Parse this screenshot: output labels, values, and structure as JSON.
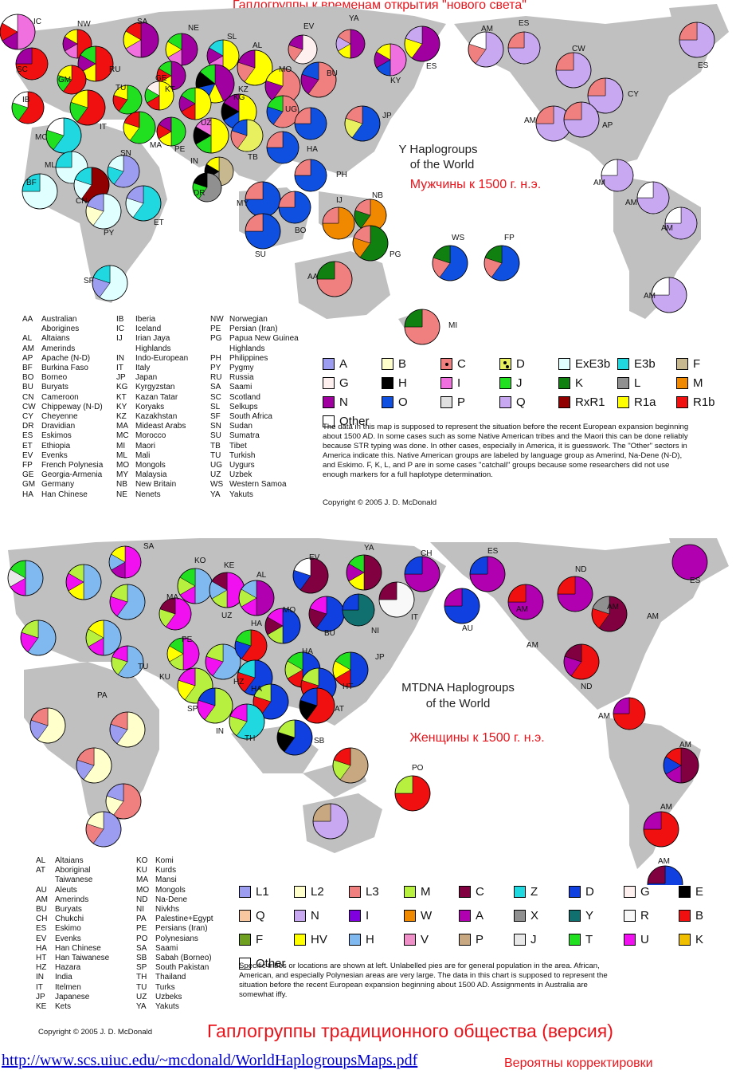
{
  "top": {
    "heading": "Гаплогруппы к временам открытия \"нового света\"",
    "map_title_line1": "Y Haplogroups",
    "map_title_line2": "of the World",
    "subtitle_ru": "Мужчины к 1500 г. н.э.",
    "labels": [
      "IC",
      "NW",
      "SA",
      "NE",
      "YA",
      "EV",
      "ES",
      "ES",
      "AM",
      "SC",
      "RU",
      "SL",
      "AL",
      "GM",
      "KT",
      "KY",
      "ES",
      "CW",
      "IB",
      "TU",
      "GE",
      "MO",
      "BU",
      "AM",
      "MC",
      "IT",
      "KG",
      "KZ",
      "UG",
      "JP",
      "CY",
      "AP",
      "ML",
      "SN",
      "UZ",
      "TB",
      "HA",
      "BF",
      "AM",
      "CN",
      "PE",
      "MA",
      "IN",
      "DR",
      "PH",
      "AM",
      "PY",
      "ET",
      "MY",
      "IJ",
      "NB",
      "AM",
      "SU",
      "BO",
      "PG",
      "WS",
      "FP",
      "SF",
      "AA",
      "MI",
      "AM"
    ],
    "abbrev": [
      [
        "AA",
        "Australian"
      ],
      [
        "",
        "Aborigines"
      ],
      [
        "AL",
        "Altaians"
      ],
      [
        "AM",
        "Amerinds"
      ],
      [
        "AP",
        "Apache (N-D)"
      ],
      [
        "BF",
        "Burkina Faso"
      ],
      [
        "BO",
        "Borneo"
      ],
      [
        "BU",
        "Buryats"
      ],
      [
        "CN",
        "Cameroon"
      ],
      [
        "CW",
        "Chippeway (N-D)"
      ],
      [
        "CY",
        "Cheyenne"
      ],
      [
        "DR",
        "Dravidian"
      ],
      [
        "ES",
        "Eskimos"
      ],
      [
        "ET",
        "Ethiopia"
      ],
      [
        "EV",
        "Evenks"
      ],
      [
        "FP",
        "French Polynesia"
      ],
      [
        "GE",
        "Georgia-Armenia"
      ],
      [
        "GM",
        "Germany"
      ],
      [
        "HA",
        "Han Chinese"
      ],
      [
        "IB",
        "Iberia"
      ],
      [
        "IC",
        "Iceland"
      ],
      [
        "IJ",
        "Irian Jaya"
      ],
      [
        "",
        "Highlands"
      ],
      [
        "IN",
        "Indo-European"
      ],
      [
        "IT",
        "Italy"
      ],
      [
        "JP",
        "Japan"
      ],
      [
        "KG",
        "Kyrgyzstan"
      ],
      [
        "KT",
        "Kazan Tatar"
      ],
      [
        "KY",
        "Koryaks"
      ],
      [
        "KZ",
        "Kazakhstan"
      ],
      [
        "MA",
        "Mideast Arabs"
      ],
      [
        "MC",
        "Morocco"
      ],
      [
        "MI",
        "Maori"
      ],
      [
        "ML",
        "Mali"
      ],
      [
        "MO",
        "Mongols"
      ],
      [
        "MY",
        "Malaysia"
      ],
      [
        "NB",
        "New Britain"
      ],
      [
        "NE",
        "Nenets"
      ],
      [
        "NW",
        "Norwegian"
      ],
      [
        "PE",
        "Persian (Iran)"
      ],
      [
        "PG",
        "Papua New Guinea"
      ],
      [
        "",
        "Highlands"
      ],
      [
        "PH",
        "Philippines"
      ],
      [
        "PY",
        "Pygmy"
      ],
      [
        "RU",
        "Russia"
      ],
      [
        "SA",
        "Saami"
      ],
      [
        "SC",
        "Scotland"
      ],
      [
        "SL",
        "Selkups"
      ],
      [
        "SF",
        "South Africa"
      ],
      [
        "SN",
        "Sudan"
      ],
      [
        "SU",
        "Sumatra"
      ],
      [
        "TB",
        "Tibet"
      ],
      [
        "TU",
        "Turkish"
      ],
      [
        "UG",
        "Uygurs"
      ],
      [
        "UZ",
        "Uzbek"
      ],
      [
        "WS",
        "Western Samoa"
      ],
      [
        "YA",
        "Yakuts"
      ]
    ],
    "key": [
      {
        "label": "A",
        "color": "#9c9cf0"
      },
      {
        "label": "B",
        "color": "#ffffcc"
      },
      {
        "label": "C",
        "color": "#f08080",
        "dot": "one"
      },
      {
        "label": "D",
        "color": "#e8f060",
        "dot": "two"
      },
      {
        "label": "ExE3b",
        "color": "#e0ffff"
      },
      {
        "label": "E3b",
        "color": "#20d8e0"
      },
      {
        "label": "F",
        "color": "#c8b890"
      },
      {
        "label": "G",
        "color": "#fff0f0"
      },
      {
        "label": "H",
        "color": "#000000"
      },
      {
        "label": "I",
        "color": "#f070e0"
      },
      {
        "label": "J",
        "color": "#20e020"
      },
      {
        "label": "K",
        "color": "#108010"
      },
      {
        "label": "L",
        "color": "#909090"
      },
      {
        "label": "M",
        "color": "#f08800"
      },
      {
        "label": "N",
        "color": "#a000a0"
      },
      {
        "label": "O",
        "color": "#1050e0"
      },
      {
        "label": "P",
        "color": "#e0e0e0"
      },
      {
        "label": "Q",
        "color": "#c8a8f0"
      },
      {
        "label": "RxR1",
        "color": "#900000"
      },
      {
        "label": "R1a",
        "color": "#ffff00"
      },
      {
        "label": "R1b",
        "color": "#f01010"
      },
      {
        "label": "Other",
        "color": "#ffffff"
      }
    ],
    "note": "The data in this map is supposed to represent the situation before the recent European expansion beginning about 1500 AD. In some cases such as some Native American tribes and the Maori this can be done reliably because STR typing was done. In other cases, especially in America, it is guesswork. The \"Other\" sectors in America indicate this. Native American groups are labeled by language group as Amerind, Na-Dene (N-D), and Eskimo.  F, K, L, and P are in some cases \"catchall\" groups because some researchers did not use enough markers for a full haplotype determination.",
    "copyright": "Copyright © 2005 J. D. McDonald"
  },
  "bottom": {
    "map_title_line1": "MTDNA Haplogroups",
    "map_title_line2": "of the World",
    "subtitle_ru": "Женщины к 1500 г. н.э.",
    "labels": [
      "SA",
      "EV",
      "YA",
      "CH",
      "ES",
      "ES",
      "KO",
      "KE",
      "AL",
      "ND",
      "MA",
      "MO",
      "AU",
      "AM",
      "AM",
      "UZ",
      "BU",
      "IT",
      "NI",
      "AM",
      "HA",
      "AM",
      "PE",
      "JP",
      "TU",
      "HA",
      "KU",
      "HT",
      "ND",
      "PA",
      "HZ",
      "AT",
      "SP",
      "HA",
      "AM",
      "IN",
      "TH",
      "SB",
      "PO",
      "AM",
      "AM",
      "AM"
    ],
    "abbrev": [
      [
        "AL",
        "Altaians"
      ],
      [
        "AT",
        "Aboriginal"
      ],
      [
        "",
        "Taiwanese"
      ],
      [
        "AU",
        "Aleuts"
      ],
      [
        "AM",
        "Amerinds"
      ],
      [
        "BU",
        "Buryats"
      ],
      [
        "CH",
        "Chukchi"
      ],
      [
        "ES",
        "Eskimo"
      ],
      [
        "EV",
        "Evenks"
      ],
      [
        "HA",
        "Han Chinese"
      ],
      [
        "HT",
        "Han Taiwanese"
      ],
      [
        "HZ",
        "Hazara"
      ],
      [
        "IN",
        "India"
      ],
      [
        "IT",
        "Itelmen"
      ],
      [
        "JP",
        "Japanese"
      ],
      [
        "KE",
        "Kets"
      ],
      [
        "KO",
        "Komi"
      ],
      [
        "KU",
        "Kurds"
      ],
      [
        "MA",
        "Mansi"
      ],
      [
        "MO",
        "Mongols"
      ],
      [
        "ND",
        "Na-Dene"
      ],
      [
        "NI",
        "Nivkhs"
      ],
      [
        "PA",
        "Palestine+Egypt"
      ],
      [
        "PE",
        "Persians (Iran)"
      ],
      [
        "PO",
        "Polynesians"
      ],
      [
        "SA",
        "Saami"
      ],
      [
        "SB",
        "Sabah (Borneo)"
      ],
      [
        "SP",
        "South Pakistan"
      ],
      [
        "TH",
        "Thailand"
      ],
      [
        "TU",
        "Turks"
      ],
      [
        "UZ",
        "Uzbeks"
      ],
      [
        "YA",
        "Yakuts"
      ]
    ],
    "key": [
      {
        "label": "L1",
        "color": "#9c9cf0"
      },
      {
        "label": "L2",
        "color": "#ffffcc"
      },
      {
        "label": "L3",
        "color": "#f08080"
      },
      {
        "label": "M",
        "color": "#b8f040"
      },
      {
        "label": "C",
        "color": "#800040"
      },
      {
        "label": "Z",
        "color": "#20d8e0"
      },
      {
        "label": "D",
        "color": "#1040e0"
      },
      {
        "label": "G",
        "color": "#fff0f0"
      },
      {
        "label": "E",
        "color": "#000000"
      },
      {
        "label": "Q",
        "color": "#f8c8a0"
      },
      {
        "label": "N",
        "color": "#c8a8f0"
      },
      {
        "label": "I",
        "color": "#8000e0"
      },
      {
        "label": "W",
        "color": "#f08800"
      },
      {
        "label": "A",
        "color": "#b000b0"
      },
      {
        "label": "X",
        "color": "#909090"
      },
      {
        "label": "Y",
        "color": "#107070"
      },
      {
        "label": "R",
        "color": "#f8f8f8"
      },
      {
        "label": "B",
        "color": "#f01010"
      },
      {
        "label": "F",
        "color": "#70a020"
      },
      {
        "label": "HV",
        "color": "#ffff00"
      },
      {
        "label": "H",
        "color": "#80b8f0"
      },
      {
        "label": "V",
        "color": "#f090c8"
      },
      {
        "label": "P",
        "color": "#c8a880"
      },
      {
        "label": "J",
        "color": "#e8e8e8"
      },
      {
        "label": "T",
        "color": "#20e020"
      },
      {
        "label": "U",
        "color": "#f010f0"
      },
      {
        "label": "K",
        "color": "#f0c000"
      },
      {
        "label": "Other",
        "color": "#ffffff"
      }
    ],
    "note": "Specific tribes or locations are shown at left. Unlabelled pies are for general population in the area. African, American, and especially Polynesian areas are very large. The data in this chart is supposed to represent the situation before the recent European expansion beginning about 1500 AD. Assignments in Australia are somewhat iffy.",
    "copyright": "Copyright © 2005 J. D. McDonald",
    "footer_ru": "Гаплогруппы традиционного общества (версия)"
  },
  "footer": {
    "url": "http://www.scs.uiuc.edu/~mcdonald/WorldHaplogroupsMaps.pdf",
    "note_ru": "Вероятны корректировки"
  }
}
